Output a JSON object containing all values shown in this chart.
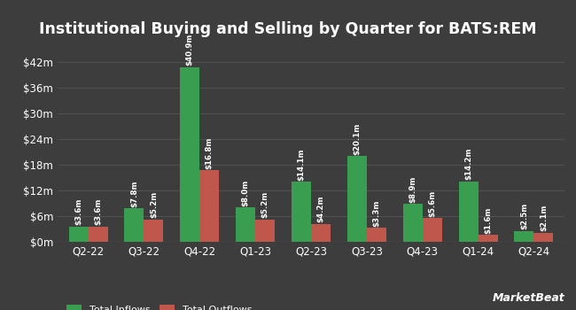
{
  "title": "Institutional Buying and Selling by Quarter for BATS:REM",
  "categories": [
    "Q2-22",
    "Q3-22",
    "Q4-22",
    "Q1-23",
    "Q2-23",
    "Q3-23",
    "Q4-23",
    "Q1-24",
    "Q2-24"
  ],
  "inflows": [
    3.6,
    7.8,
    40.9,
    8.0,
    14.1,
    20.1,
    8.9,
    14.2,
    2.5
  ],
  "outflows": [
    3.6,
    5.2,
    16.8,
    5.2,
    4.2,
    3.3,
    5.6,
    1.6,
    2.1
  ],
  "inflow_labels": [
    "$3.6m",
    "$7.8m",
    "$40.9m",
    "$8.0m",
    "$14.1m",
    "$20.1m",
    "$8.9m",
    "$14.2m",
    "$2.5m"
  ],
  "outflow_labels": [
    "$3.6m",
    "$5.2m",
    "$16.8m",
    "$5.2m",
    "$4.2m",
    "$3.3m",
    "$5.6m",
    "$1.6m",
    "$2.1m"
  ],
  "inflow_color": "#3a9e50",
  "outflow_color": "#c0574d",
  "background_color": "#3d3d3d",
  "text_color": "#ffffff",
  "grid_color": "#555555",
  "yticks": [
    0,
    6,
    12,
    18,
    24,
    30,
    36,
    42
  ],
  "ytick_labels": [
    "$0m",
    "$6m",
    "$12m",
    "$18m",
    "$24m",
    "$30m",
    "$36m",
    "$42m"
  ],
  "ylim": [
    0,
    45
  ],
  "legend_inflow": "Total Inflows",
  "legend_outflow": "Total Outflows",
  "bar_width": 0.35,
  "label_fontsize": 6.2,
  "title_fontsize": 12.5,
  "tick_fontsize": 8.5,
  "legend_fontsize": 8,
  "watermark": "MarketBeat"
}
